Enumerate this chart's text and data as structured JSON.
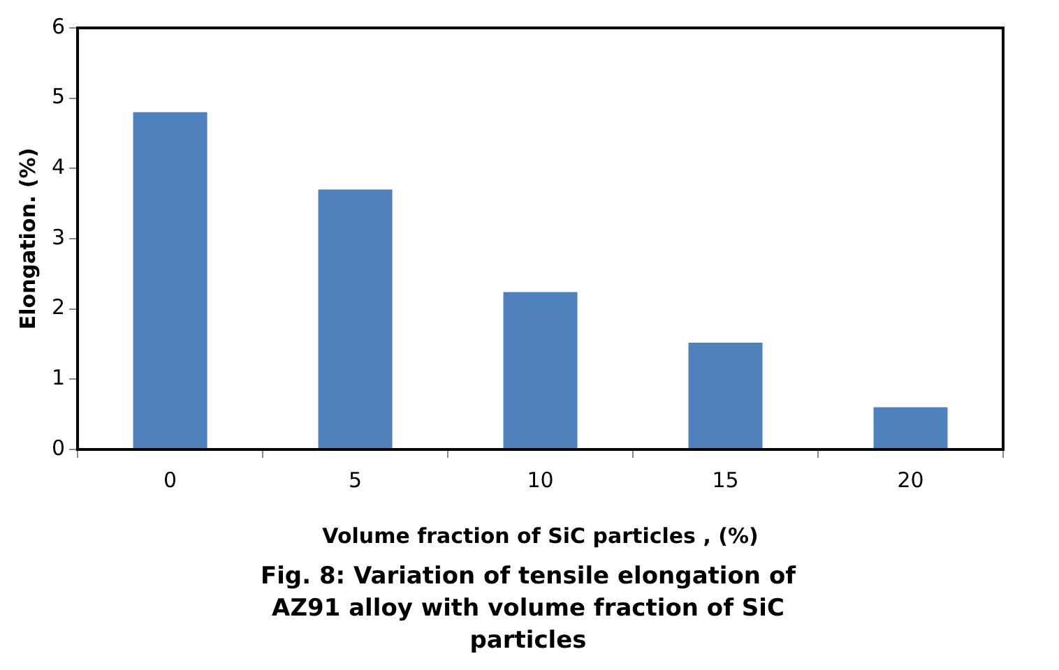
{
  "chart_data": {
    "type": "bar",
    "categories": [
      "0",
      "5",
      "10",
      "15",
      "20"
    ],
    "values": [
      4.8,
      3.7,
      2.24,
      1.52,
      0.6
    ],
    "color": "#4f81bd",
    "xlabel": "Volume fraction of SiC particles , (%)",
    "ylabel": "Elongation. (%)",
    "ylim": [
      0,
      6
    ],
    "yticks": [
      0,
      1,
      2,
      3,
      4,
      5,
      6
    ],
    "grid": false,
    "legend": false,
    "annotations": [
      "Fig. 8: Variation of tensile elongation of AZ91 alloy with volume fraction of SiC particles"
    ]
  }
}
